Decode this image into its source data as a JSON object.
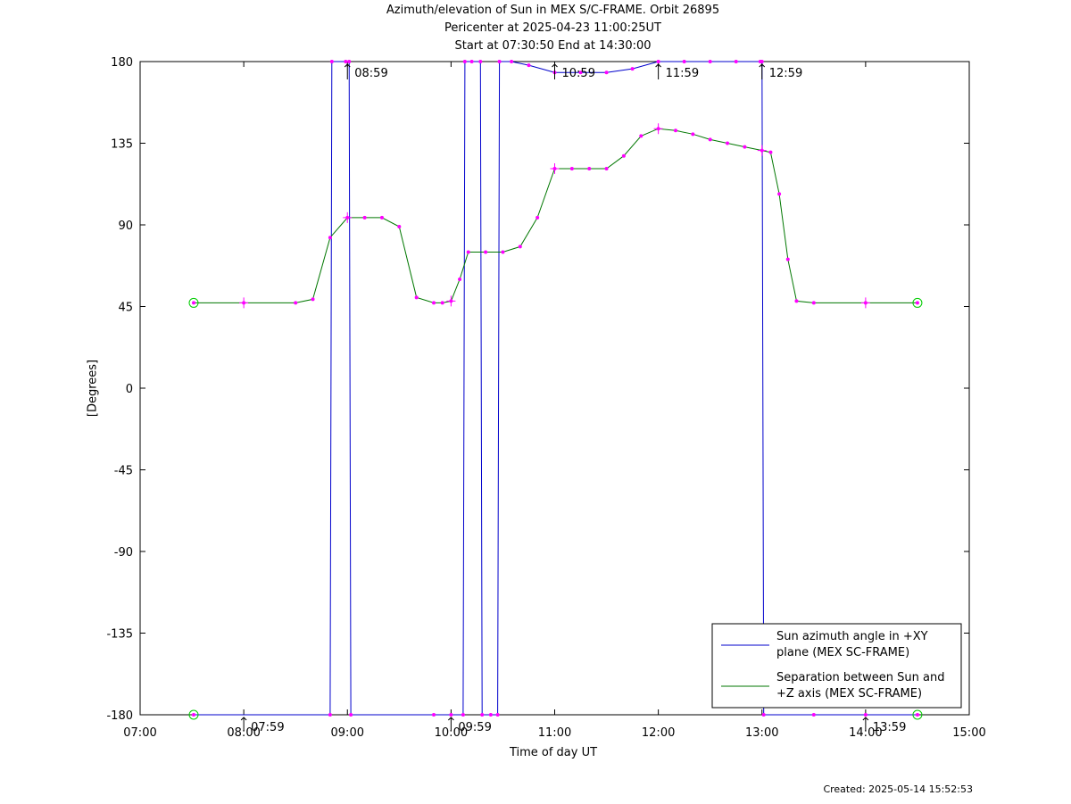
{
  "chart_data": {
    "type": "line",
    "title": [
      "Azimuth/elevation of Sun in MEX S/C-FRAME.  Orbit 26895",
      "Pericenter at 2025-04-23 11:00:25UT",
      "Start at 07:30:50 End at 14:30:00"
    ],
    "xlabel": "Time of day UT",
    "ylabel": "[Degrees]",
    "xlim": [
      "07:00",
      "15:00"
    ],
    "ylim": [
      -180,
      180
    ],
    "x_ticks": [
      "07:00",
      "08:00",
      "09:00",
      "10:00",
      "11:00",
      "12:00",
      "13:00",
      "14:00",
      "15:00"
    ],
    "y_ticks": [
      "180",
      "135",
      "90",
      "45",
      "0",
      "-45",
      "-90",
      "-135",
      "-180"
    ],
    "hour_annotations_top": [
      "08:59",
      "10:59",
      "11:59",
      "12:59"
    ],
    "hour_annotations_bottom": [
      "07:59",
      "09:59",
      "13:59"
    ],
    "legend_position": "bottom-right",
    "series": [
      {
        "name": "Sun azimuth angle in +XY plane (MEX SC-FRAME)",
        "name_lines": [
          "Sun azimuth angle in +XY",
          "plane (MEX SC-FRAME)"
        ],
        "color": "#0000cc",
        "x": [
          "07:31",
          "08:50",
          "08:51",
          "08:59",
          "09:01",
          "09:02",
          "09:50",
          "10:00",
          "10:07",
          "10:08",
          "10:12",
          "10:17",
          "10:18",
          "10:23",
          "10:27",
          "10:28",
          "10:35",
          "10:45",
          "11:00",
          "11:15",
          "11:30",
          "11:45",
          "12:00",
          "12:15",
          "12:30",
          "12:45",
          "12:59",
          "13:00",
          "13:01",
          "13:30",
          "14:00",
          "14:30"
        ],
        "y": [
          -180,
          -180,
          180,
          180,
          180,
          -180,
          -180,
          -180,
          -180,
          180,
          180,
          180,
          -180,
          -180,
          -180,
          180,
          180,
          178,
          174,
          174,
          174,
          176,
          180,
          180,
          180,
          180,
          180,
          180,
          -180,
          -180,
          -180,
          -180
        ]
      },
      {
        "name": "Separation between Sun and +Z axis (MEX SC-FRAME)",
        "name_lines": [
          "Separation between Sun and",
          "+Z axis (MEX SC-FRAME)"
        ],
        "color": "#007700",
        "x": [
          "07:31",
          "08:00",
          "08:30",
          "08:40",
          "08:50",
          "09:00",
          "09:10",
          "09:20",
          "09:30",
          "09:40",
          "09:50",
          "09:55",
          "10:00",
          "10:05",
          "10:10",
          "10:20",
          "10:30",
          "10:40",
          "10:50",
          "11:00",
          "11:10",
          "11:20",
          "11:30",
          "11:40",
          "11:50",
          "12:00",
          "12:10",
          "12:20",
          "12:30",
          "12:40",
          "12:50",
          "13:00",
          "13:05",
          "13:10",
          "13:15",
          "13:20",
          "13:30",
          "14:00",
          "14:30"
        ],
        "y": [
          47,
          47,
          47,
          49,
          83,
          94,
          94,
          94,
          89,
          50,
          47,
          47,
          48,
          60,
          75,
          75,
          75,
          78,
          94,
          121,
          121,
          121,
          121,
          128,
          139,
          143,
          142,
          140,
          137,
          135,
          133,
          131,
          130,
          107,
          71,
          48,
          47,
          47,
          47
        ]
      }
    ]
  },
  "created": "Created: 2025-05-14 15:52:53"
}
